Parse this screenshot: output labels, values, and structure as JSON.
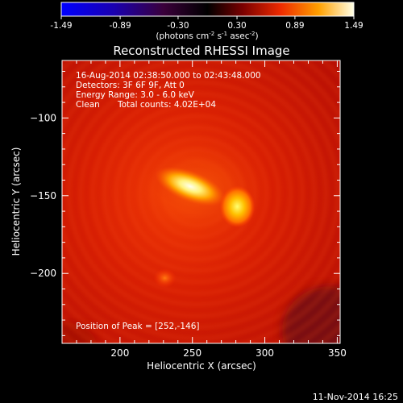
{
  "chart_data": {
    "type": "heatmap",
    "title": "Reconstructed RHESSI Image",
    "xlabel": "Heliocentric X (arcsec)",
    "ylabel": "Heliocentric Y (arcsec)",
    "xlim": [
      160,
      352
    ],
    "ylim": [
      -245,
      -63
    ],
    "xticks": [
      200,
      250,
      300,
      350
    ],
    "yticks": [
      -100,
      -150,
      -200
    ],
    "colorbar": {
      "range": [
        -1.49,
        1.49
      ],
      "ticks": [
        "-1.49",
        "-0.89",
        "-0.30",
        "0.30",
        "0.89",
        "1.49"
      ],
      "label_main": "(photons cm",
      "label_sup1": "-2",
      "label_mid1": " s",
      "label_sup2": "-1",
      "label_mid2": " asec",
      "label_sup3": "-2",
      "label_end": ")",
      "colormap": "hot/blue"
    },
    "annotations": {
      "time": "16-Aug-2014 02:38:50.000 to 02:43:48.000",
      "detectors": "Detectors: 3F 6F 9F, Att 0",
      "energy": "Energy Range: 3.0 - 6.0 keV",
      "method": "Clean",
      "counts": "Total counts: 4.02E+04",
      "peak": "Position of Peak = [252,-146]"
    },
    "sources": [
      {
        "x": 248,
        "y": -144,
        "peak": 1.49,
        "shape": "elongated ridge from (232,-138) to (265,-150)"
      },
      {
        "x": 281,
        "y": -157,
        "peak": 1.2
      },
      {
        "x": 231,
        "y": -203,
        "peak": 0.55
      }
    ],
    "footer_date": "11-Nov-2014 16:25"
  }
}
